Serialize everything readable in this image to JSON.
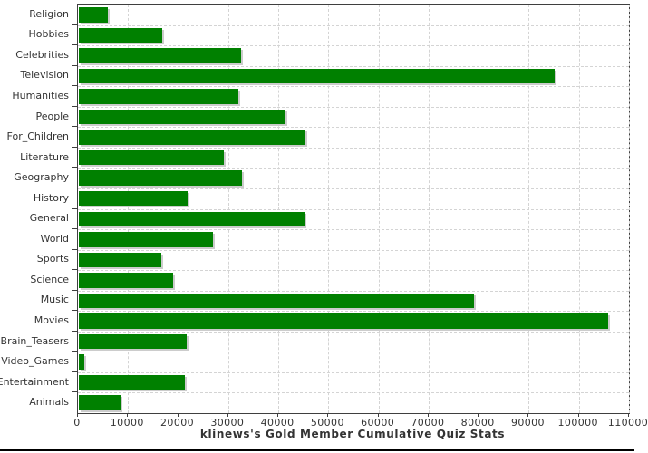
{
  "chart_data": {
    "type": "bar",
    "orientation": "horizontal",
    "title": "klinews's Gold Member Cumulative Quiz Stats",
    "xlabel": "",
    "ylabel": "",
    "categories": [
      "Religion",
      "Hobbies",
      "Celebrities",
      "Television",
      "Humanities",
      "People",
      "For_Children",
      "Literature",
      "Geography",
      "History",
      "General",
      "World",
      "Sports",
      "Science",
      "Music",
      "Movies",
      "Brain_Teasers",
      "Video_Games",
      "Entertainment",
      "Animals"
    ],
    "values": [
      5700,
      16700,
      32300,
      94900,
      31900,
      41200,
      45200,
      29000,
      32600,
      21800,
      45100,
      26700,
      16500,
      18800,
      78800,
      105700,
      21600,
      1000,
      21100,
      8300
    ],
    "xlim": [
      0,
      110000
    ],
    "x_ticks": [
      0,
      10000,
      20000,
      30000,
      40000,
      50000,
      60000,
      70000,
      80000,
      90000,
      100000,
      110000
    ],
    "grid": true,
    "legend": "none",
    "bar_color": "#008000",
    "bar_shadow_color": "#cccccc",
    "gridline_color": "#d4d4d4",
    "axis_color": "#3f3f3f",
    "text_color": "#333333"
  }
}
